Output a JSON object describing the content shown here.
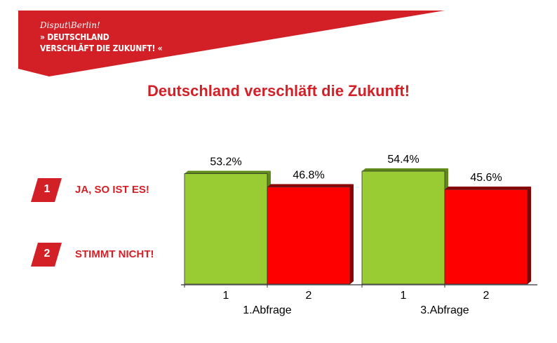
{
  "header": {
    "brand": "Disput\\Berlin!",
    "line1": "» DEUTSCHLAND",
    "line2": "VERSCHLÄFT DIE ZUKUNFT! «",
    "color": "#d31f26"
  },
  "title": "Deutschland verschläft die Zukunft!",
  "legend": [
    {
      "number": "1",
      "label": "JA, SO IST ES!"
    },
    {
      "number": "2",
      "label": "STIMMT NICHT!"
    }
  ],
  "chart_data": {
    "type": "bar",
    "title": "",
    "groups": [
      {
        "name": "1.Abfrage",
        "categories": [
          "1",
          "2"
        ],
        "values": [
          53.2,
          46.8
        ],
        "labels": [
          "53.2%",
          "46.8%"
        ]
      },
      {
        "name": "3.Abfrage",
        "categories": [
          "1",
          "2"
        ],
        "values": [
          54.4,
          45.6
        ],
        "labels": [
          "54.4%",
          "45.6%"
        ]
      }
    ],
    "series_colors": {
      "1": "#99cc33",
      "2": "#ff0000"
    },
    "ylim": [
      0,
      60
    ],
    "grid": false,
    "legend": "left"
  }
}
